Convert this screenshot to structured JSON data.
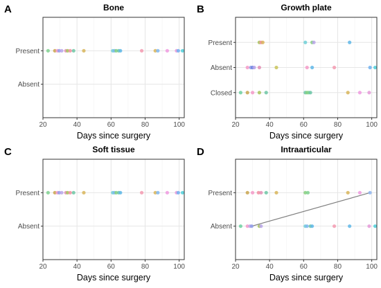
{
  "chart_data": [
    {
      "type": "scatter",
      "panel": "A",
      "title": "Bone",
      "xlabel": "Days since surgery",
      "ylabel": "",
      "xlim": [
        20,
        103
      ],
      "xticks": [
        20,
        40,
        60,
        80,
        100
      ],
      "categories": [
        "Absent",
        "Present"
      ],
      "grid": true,
      "points": [
        {
          "x": 23,
          "y": "Present",
          "color": "#7fd18f"
        },
        {
          "x": 27,
          "y": "Present",
          "color": "#c9a44e"
        },
        {
          "x": 28.5,
          "y": "Present",
          "color": "#f59ac8"
        },
        {
          "x": 29.5,
          "y": "Present",
          "color": "#8f9ce8"
        },
        {
          "x": 31,
          "y": "Present",
          "color": "#b8a4ea"
        },
        {
          "x": 33.5,
          "y": "Present",
          "color": "#e38fb5"
        },
        {
          "x": 34.5,
          "y": "Present",
          "color": "#a7c45a"
        },
        {
          "x": 36,
          "y": "Present",
          "color": "#f28ea0"
        },
        {
          "x": 38,
          "y": "Present",
          "color": "#6dc7a5"
        },
        {
          "x": 44,
          "y": "Present",
          "color": "#d8b55a"
        },
        {
          "x": 61,
          "y": "Present",
          "color": "#6fcfd7"
        },
        {
          "x": 62,
          "y": "Present",
          "color": "#7fb6f0"
        },
        {
          "x": 63,
          "y": "Present",
          "color": "#86d07e"
        },
        {
          "x": 64.5,
          "y": "Present",
          "color": "#6cc5a8"
        },
        {
          "x": 65.5,
          "y": "Present",
          "color": "#5fb7e8"
        },
        {
          "x": 78,
          "y": "Present",
          "color": "#f39ab0"
        },
        {
          "x": 86,
          "y": "Present",
          "color": "#d8b55a"
        },
        {
          "x": 87.5,
          "y": "Present",
          "color": "#7fb6f0"
        },
        {
          "x": 93,
          "y": "Present",
          "color": "#f09ae0"
        },
        {
          "x": 98.5,
          "y": "Present",
          "color": "#e59ad9"
        },
        {
          "x": 99.5,
          "y": "Present",
          "color": "#6fb0f0"
        },
        {
          "x": 102,
          "y": "Present",
          "color": "#4fd0dc"
        }
      ],
      "lines": []
    },
    {
      "type": "scatter",
      "panel": "B",
      "title": "Growth plate",
      "xlabel": "Days since surgery",
      "ylabel": "",
      "xlim": [
        20,
        103
      ],
      "xticks": [
        20,
        40,
        60,
        80,
        100
      ],
      "categories": [
        "Closed",
        "Absent",
        "Present"
      ],
      "grid": true,
      "points": [
        {
          "x": 34,
          "y": "Present",
          "color": "#a7c45a"
        },
        {
          "x": 35,
          "y": "Present",
          "color": "#f28ea0"
        },
        {
          "x": 36,
          "y": "Present",
          "color": "#d8b55a"
        },
        {
          "x": 61,
          "y": "Present",
          "color": "#6fcfd7"
        },
        {
          "x": 65,
          "y": "Present",
          "color": "#86d07e"
        },
        {
          "x": 66,
          "y": "Present",
          "color": "#b8a4ea"
        },
        {
          "x": 87,
          "y": "Present",
          "color": "#5fb7e8"
        },
        {
          "x": 27,
          "y": "Absent",
          "color": "#f59ac8"
        },
        {
          "x": 29,
          "y": "Absent",
          "color": "#8f9ce8"
        },
        {
          "x": 30,
          "y": "Absent",
          "color": "#6b84e0"
        },
        {
          "x": 31,
          "y": "Absent",
          "color": "#b8a4ea"
        },
        {
          "x": 34,
          "y": "Absent",
          "color": "#e38fb5"
        },
        {
          "x": 44,
          "y": "Absent",
          "color": "#c9c45a"
        },
        {
          "x": 62,
          "y": "Absent",
          "color": "#f59ac8"
        },
        {
          "x": 65,
          "y": "Absent",
          "color": "#5fb7e8"
        },
        {
          "x": 78,
          "y": "Absent",
          "color": "#f39ab0"
        },
        {
          "x": 99,
          "y": "Absent",
          "color": "#6fb0f0"
        },
        {
          "x": 102,
          "y": "Absent",
          "color": "#4fd0dc"
        },
        {
          "x": 23,
          "y": "Closed",
          "color": "#6dd0a0"
        },
        {
          "x": 27,
          "y": "Closed",
          "color": "#c9a44e"
        },
        {
          "x": 30,
          "y": "Closed",
          "color": "#f59ac8"
        },
        {
          "x": 34,
          "y": "Closed",
          "color": "#a7c45a"
        },
        {
          "x": 38,
          "y": "Closed",
          "color": "#6dc7a5"
        },
        {
          "x": 61,
          "y": "Closed",
          "color": "#6cc5a8"
        },
        {
          "x": 62,
          "y": "Closed",
          "color": "#86d07e"
        },
        {
          "x": 63,
          "y": "Closed",
          "color": "#7fd18f"
        },
        {
          "x": 64,
          "y": "Closed",
          "color": "#6cc5a8"
        },
        {
          "x": 86,
          "y": "Closed",
          "color": "#d8b55a"
        },
        {
          "x": 93,
          "y": "Closed",
          "color": "#f09ae0"
        },
        {
          "x": 98.5,
          "y": "Closed",
          "color": "#e59ad9"
        }
      ],
      "lines": []
    },
    {
      "type": "scatter",
      "panel": "C",
      "title": "Soft tissue",
      "xlabel": "Days since surgery",
      "ylabel": "",
      "xlim": [
        20,
        103
      ],
      "xticks": [
        20,
        40,
        60,
        80,
        100
      ],
      "categories": [
        "Absent",
        "Present"
      ],
      "grid": true,
      "points": [
        {
          "x": 23,
          "y": "Present",
          "color": "#7fd18f"
        },
        {
          "x": 27,
          "y": "Present",
          "color": "#c9a44e"
        },
        {
          "x": 28.5,
          "y": "Present",
          "color": "#f59ac8"
        },
        {
          "x": 29.5,
          "y": "Present",
          "color": "#8f9ce8"
        },
        {
          "x": 31,
          "y": "Present",
          "color": "#b8a4ea"
        },
        {
          "x": 33.5,
          "y": "Present",
          "color": "#e38fb5"
        },
        {
          "x": 34.5,
          "y": "Present",
          "color": "#a7c45a"
        },
        {
          "x": 36,
          "y": "Present",
          "color": "#f28ea0"
        },
        {
          "x": 38,
          "y": "Present",
          "color": "#6dc7a5"
        },
        {
          "x": 44,
          "y": "Present",
          "color": "#d8b55a"
        },
        {
          "x": 61,
          "y": "Present",
          "color": "#6fcfd7"
        },
        {
          "x": 62,
          "y": "Present",
          "color": "#7fb6f0"
        },
        {
          "x": 63,
          "y": "Present",
          "color": "#86d07e"
        },
        {
          "x": 64.5,
          "y": "Present",
          "color": "#6cc5a8"
        },
        {
          "x": 65.5,
          "y": "Present",
          "color": "#5fb7e8"
        },
        {
          "x": 78,
          "y": "Present",
          "color": "#f39ab0"
        },
        {
          "x": 86,
          "y": "Present",
          "color": "#d8b55a"
        },
        {
          "x": 87.5,
          "y": "Present",
          "color": "#7fb6f0"
        },
        {
          "x": 93,
          "y": "Present",
          "color": "#f09ae0"
        },
        {
          "x": 98.5,
          "y": "Present",
          "color": "#e59ad9"
        },
        {
          "x": 99.5,
          "y": "Present",
          "color": "#6fb0f0"
        },
        {
          "x": 102,
          "y": "Present",
          "color": "#4fd0dc"
        }
      ],
      "lines": []
    },
    {
      "type": "scatter",
      "panel": "D",
      "title": "Intraarticular",
      "xlabel": "Days since surgery",
      "ylabel": "",
      "xlim": [
        20,
        103
      ],
      "xticks": [
        20,
        40,
        60,
        80,
        100
      ],
      "categories": [
        "Absent",
        "Present"
      ],
      "grid": true,
      "points": [
        {
          "x": 27,
          "y": "Present",
          "color": "#c9a44e"
        },
        {
          "x": 30,
          "y": "Present",
          "color": "#f59ac8"
        },
        {
          "x": 33.5,
          "y": "Present",
          "color": "#f28ea0"
        },
        {
          "x": 35,
          "y": "Present",
          "color": "#e38fb5"
        },
        {
          "x": 38,
          "y": "Present",
          "color": "#6dc7a5"
        },
        {
          "x": 44,
          "y": "Present",
          "color": "#d8b55a"
        },
        {
          "x": 61,
          "y": "Present",
          "color": "#86d07e"
        },
        {
          "x": 62.5,
          "y": "Present",
          "color": "#7fd18f"
        },
        {
          "x": 86,
          "y": "Present",
          "color": "#d8b55a"
        },
        {
          "x": 93,
          "y": "Present",
          "color": "#f09ae0"
        },
        {
          "x": 99,
          "y": "Present",
          "color": "#8fb6f0"
        },
        {
          "x": 23,
          "y": "Absent",
          "color": "#6dd0a0"
        },
        {
          "x": 27,
          "y": "Absent",
          "color": "#f59ac8"
        },
        {
          "x": 28.5,
          "y": "Absent",
          "color": "#b8a4ea"
        },
        {
          "x": 29.5,
          "y": "Absent",
          "color": "#8f9ce8"
        },
        {
          "x": 34,
          "y": "Absent",
          "color": "#a7c45a"
        },
        {
          "x": 35,
          "y": "Absent",
          "color": "#b8a4ea"
        },
        {
          "x": 61,
          "y": "Absent",
          "color": "#6fcfd7"
        },
        {
          "x": 62,
          "y": "Absent",
          "color": "#7fb6f0"
        },
        {
          "x": 64,
          "y": "Absent",
          "color": "#6cc5a8"
        },
        {
          "x": 65,
          "y": "Absent",
          "color": "#5fb7e8"
        },
        {
          "x": 78,
          "y": "Absent",
          "color": "#f39ab0"
        },
        {
          "x": 87,
          "y": "Absent",
          "color": "#5fb7e8"
        },
        {
          "x": 98.5,
          "y": "Absent",
          "color": "#e59ad9"
        },
        {
          "x": 102,
          "y": "Absent",
          "color": "#4fd0dc"
        }
      ],
      "lines": [
        {
          "from": {
            "x": 29.5,
            "y": "Absent"
          },
          "to": {
            "x": 99,
            "y": "Present"
          },
          "color": "#7f7f7f"
        }
      ]
    }
  ]
}
